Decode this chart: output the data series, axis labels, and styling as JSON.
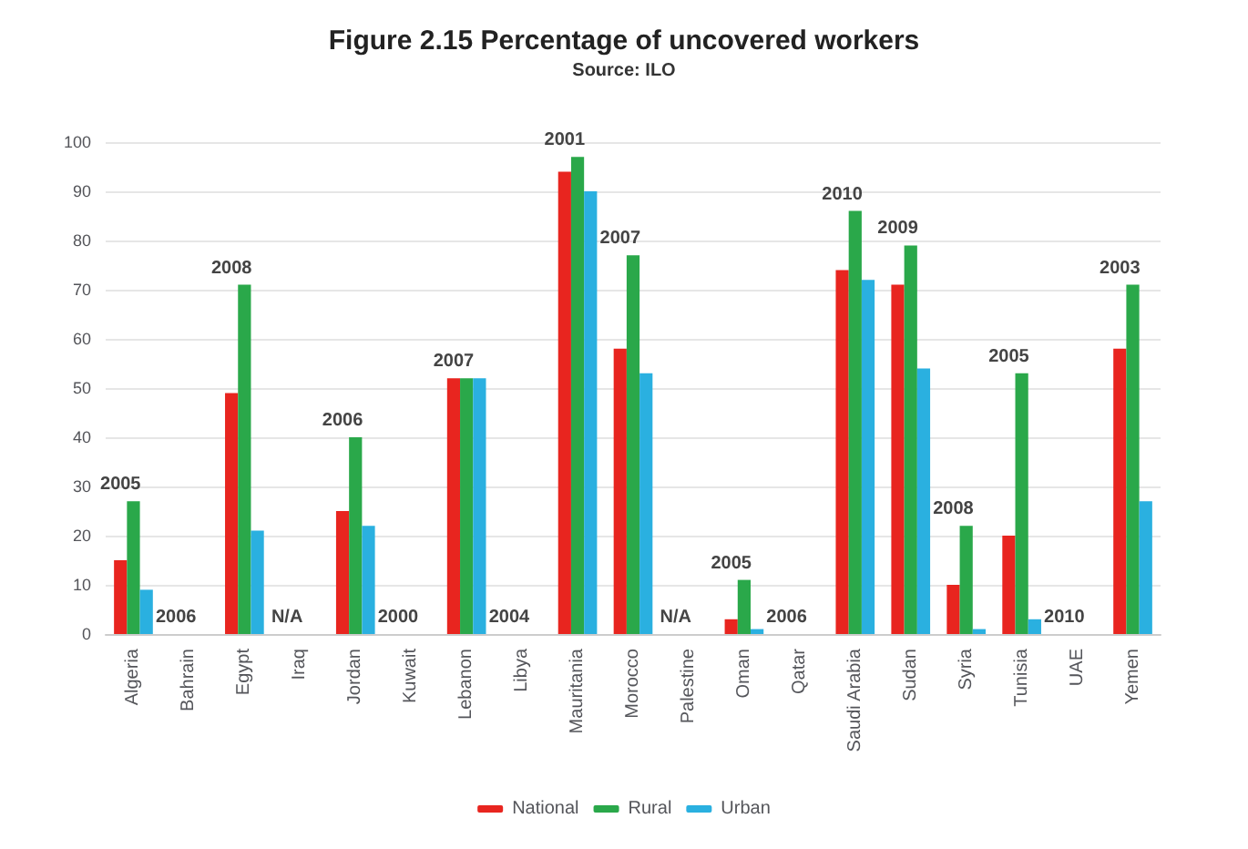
{
  "chart_data": {
    "type": "bar",
    "title": "Figure 2.15 Percentage of uncovered workers",
    "subtitle": "Source: ILO",
    "categories": [
      "Algeria",
      "Bahrain",
      "Egypt",
      "Iraq",
      "Jordan",
      "Kuwait",
      "Lebanon",
      "Libya",
      "Mauritania",
      "Morocco",
      "Palestine",
      "Oman",
      "Qatar",
      "Saudi Arabia",
      "Sudan",
      "Syria",
      "Tunisia",
      "UAE",
      "Yemen"
    ],
    "series": [
      {
        "name": "National",
        "color": "#e8251f",
        "values": [
          15,
          null,
          49,
          null,
          25,
          null,
          52,
          null,
          94,
          58,
          null,
          3,
          null,
          74,
          71,
          10,
          20,
          null,
          58
        ]
      },
      {
        "name": "Rural",
        "color": "#2aa84a",
        "values": [
          27,
          null,
          71,
          null,
          40,
          null,
          52,
          null,
          97,
          77,
          null,
          11,
          null,
          86,
          79,
          22,
          53,
          null,
          71
        ]
      },
      {
        "name": "Urban",
        "color": "#2ab0e0",
        "values": [
          9,
          null,
          21,
          null,
          22,
          null,
          52,
          null,
          90,
          53,
          null,
          1,
          null,
          72,
          54,
          1,
          3,
          null,
          27
        ]
      }
    ],
    "ylim": [
      0,
      100
    ],
    "yticks": [
      0,
      10,
      20,
      30,
      40,
      50,
      60,
      70,
      80,
      90,
      100
    ],
    "grid": "y",
    "legend": "bottom",
    "annotations": [
      {
        "text": "2005",
        "x": "Algeria",
        "y": 27
      },
      "2006",
      {
        "text": "2008",
        "x": "Egypt",
        "y": 71
      },
      "N/A",
      {
        "text": "2006",
        "x": "Jordan",
        "y": 40
      },
      "2000",
      {
        "text": "2007",
        "x": "Lebanon",
        "y": 52
      },
      "2004",
      {
        "text": "2001",
        "x": "Mauritania",
        "y": 97
      },
      {
        "text": "2007",
        "x": "Morocco",
        "y": 77
      },
      "N/A",
      {
        "text": "2005",
        "x": "Oman",
        "y": 11
      },
      "2006",
      {
        "text": "2010",
        "x": "Saudi Arabia",
        "y": 86
      },
      {
        "text": "2009",
        "x": "Sudan",
        "y": 79
      },
      {
        "text": "2008",
        "x": "Syria",
        "y": 22
      },
      {
        "text": "2005",
        "x": "Tunisia",
        "y": 53
      },
      "2010",
      {
        "text": "2003",
        "x": "Yemen",
        "y": 71
      }
    ]
  }
}
